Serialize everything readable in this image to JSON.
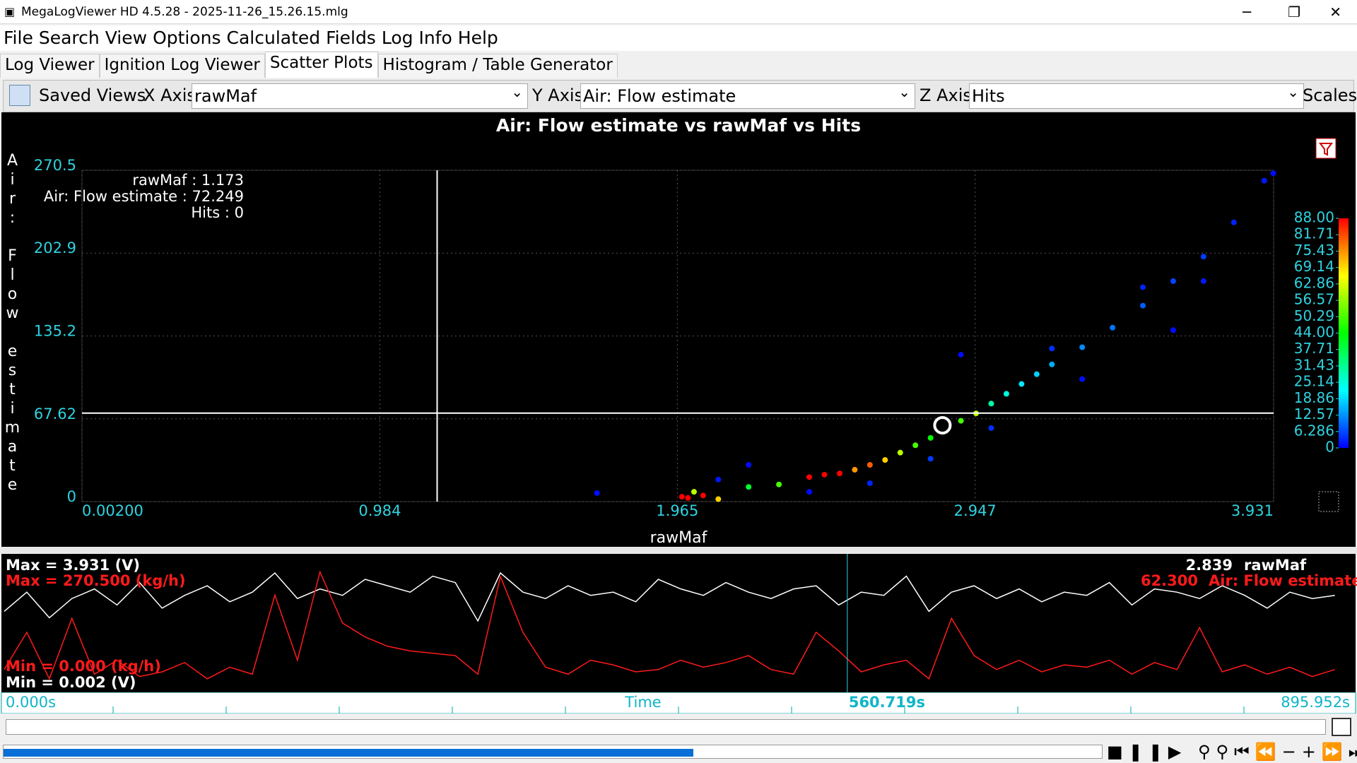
{
  "window": {
    "title": "MegaLogViewer HD 4.5.28 - 2025-11-26_15.26.15.mlg"
  },
  "menu": [
    "File",
    "Search",
    "View",
    "Options",
    "Calculated Fields",
    "Log Info",
    "Help"
  ],
  "tabs": [
    "Log Viewer",
    "Ignition Log Viewer",
    "Scatter Plots",
    "Histogram / Table Generator"
  ],
  "toolbar": {
    "saved_views": "Saved Views",
    "x_axis_label": "X Axis:",
    "x_axis_value": "rawMaf",
    "y_axis_label": "Y Axis:",
    "y_axis_value": "Air: Flow estimate",
    "z_axis_label": "Z Axis:",
    "z_axis_value": "Hits",
    "scales": "Scales"
  },
  "chart_data": {
    "type": "scatter",
    "title": "Air: Flow estimate vs rawMaf vs Hits",
    "x_label": "rawMaf",
    "y_label": "Air: Flow estimate",
    "xlim": [
      0.002,
      3.931
    ],
    "xticks": [
      {
        "value": 0.002,
        "label": "0.00200"
      },
      0.984,
      1.965,
      2.947,
      3.931
    ],
    "ylim": [
      0,
      270.5
    ],
    "yticks": [
      0,
      67.62,
      135.2,
      202.9,
      270.5
    ],
    "grid": true,
    "cursor": {
      "x": 1.173,
      "y": 72.249,
      "z": 0,
      "x_name": "rawMaf",
      "y_name": "Air: Flow estimate",
      "z_name": "Hits",
      "separator": " : "
    },
    "colorbar": {
      "ticks": [
        0,
        6.286,
        12.57,
        18.86,
        25.14,
        31.43,
        37.71,
        {
          "value": 44,
          "label": "44.00"
        },
        50.29,
        56.57,
        62.86,
        69.14,
        75.43,
        81.71,
        {
          "value": 88,
          "label": "88.00"
        }
      ]
    },
    "x": [
      1.98,
      2.0,
      2.05,
      2.1,
      2.02,
      2.2,
      2.3,
      2.4,
      2.45,
      2.5,
      2.55,
      2.6,
      2.65,
      2.7,
      2.75,
      2.8,
      2.85,
      2.9,
      2.95,
      3.0,
      3.05,
      3.1,
      3.15,
      3.2,
      3.3,
      3.4,
      3.5,
      3.6,
      3.7,
      3.8,
      3.9,
      3.93,
      2.2,
      2.4,
      3.3,
      3.7,
      2.6,
      3.0,
      2.8,
      3.5,
      3.2,
      1.7,
      2.1,
      2.9,
      3.6
    ],
    "y": [
      4,
      3,
      5,
      2,
      8,
      12,
      14,
      20,
      22,
      23,
      26,
      30,
      34,
      40,
      46,
      52,
      60,
      66,
      72,
      80,
      88,
      96,
      104,
      112,
      126,
      142,
      160,
      180,
      200,
      228,
      262,
      268,
      30,
      8,
      100,
      180,
      15,
      60,
      35,
      175,
      125,
      7,
      18,
      120,
      140
    ],
    "z": [
      88,
      88,
      88,
      70,
      60,
      40,
      50,
      88,
      88,
      88,
      75,
      80,
      70,
      60,
      50,
      44,
      40,
      50,
      60,
      30,
      25,
      20,
      18,
      15,
      12,
      10,
      8,
      6,
      5,
      3,
      2,
      1,
      1,
      1,
      1,
      2,
      3,
      4,
      5,
      3,
      4,
      1,
      2,
      1,
      1
    ]
  },
  "log_pane": {
    "time": [
      0,
      15,
      30,
      45,
      60,
      75,
      90,
      105,
      120,
      135,
      150,
      165,
      180,
      195,
      210,
      225,
      240,
      255,
      270,
      285,
      300,
      315,
      330,
      345,
      360,
      375,
      390,
      405,
      420,
      435,
      450,
      465,
      480,
      495,
      510,
      525,
      540,
      555,
      570,
      585,
      600,
      615,
      630,
      645,
      660,
      675,
      690,
      705,
      720,
      735,
      750,
      765,
      780,
      795,
      810,
      825,
      840,
      855,
      870,
      885
    ],
    "series": [
      {
        "name": "rawMaf",
        "color": "#ffffff",
        "min": {
          "value": 0.002,
          "label": "Min = 0.002 (V)"
        },
        "max": {
          "value": 3.931,
          "label": "Max = 3.931 (V)"
        },
        "readout": {
          "value": 2.839,
          "label": "2.839"
        },
        "values": [
          2.4,
          3.0,
          2.2,
          2.8,
          3.1,
          2.6,
          3.3,
          2.5,
          2.9,
          3.2,
          2.7,
          3.0,
          3.6,
          2.8,
          3.1,
          2.9,
          3.4,
          3.2,
          3.0,
          3.5,
          3.3,
          2.1,
          3.6,
          3.0,
          2.8,
          3.2,
          2.9,
          3.0,
          2.7,
          3.4,
          3.1,
          2.9,
          3.3,
          3.0,
          2.8,
          3.1,
          3.2,
          2.6,
          3.0,
          2.9,
          3.5,
          2.4,
          3.0,
          3.2,
          2.8,
          3.1,
          2.7,
          3.0,
          2.9,
          3.3,
          2.6,
          3.1,
          3.0,
          2.8,
          3.2,
          2.9,
          2.5,
          3.0,
          2.8,
          2.9
        ]
      },
      {
        "name": "Air: Flow estimate",
        "color": "#ff1a1a",
        "min": {
          "value": 0,
          "label": "Min = 0.000 (kg/h)"
        },
        "max": {
          "value": 270.5,
          "label": "Max = 270.500 (kg/h)"
        },
        "readout": {
          "value": 62.3,
          "label": "62.300"
        },
        "values": [
          40,
          120,
          20,
          150,
          30,
          60,
          25,
          35,
          55,
          20,
          45,
          30,
          200,
          60,
          250,
          140,
          110,
          90,
          80,
          75,
          70,
          30,
          240,
          120,
          45,
          30,
          60,
          50,
          35,
          40,
          60,
          45,
          55,
          70,
          40,
          30,
          120,
          80,
          35,
          50,
          60,
          20,
          150,
          70,
          40,
          60,
          35,
          50,
          45,
          60,
          30,
          55,
          40,
          130,
          35,
          50,
          30,
          45,
          25,
          40
        ]
      }
    ],
    "time_axis": {
      "label": "Time",
      "start": {
        "value": 0,
        "label": "0.000s"
      },
      "cursor": {
        "value": 560.719,
        "label": "560.719s"
      },
      "end": {
        "value": 895.952,
        "label": "895.952s"
      }
    }
  }
}
